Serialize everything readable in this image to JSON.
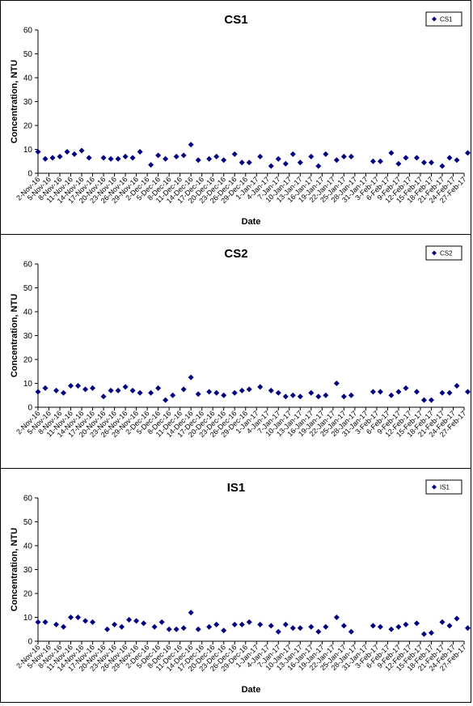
{
  "chart_data": [
    {
      "type": "scatter",
      "title": "CS1",
      "xlabel": "Date",
      "ylabel": "Concentration, NTU",
      "ylim": [
        0,
        60
      ],
      "yticks": [
        0,
        10,
        20,
        30,
        40,
        50,
        60
      ],
      "xlim": [
        "2-Nov-16",
        "27-Feb-17"
      ],
      "xticks": [
        "2-Nov-16",
        "5-Nov-16",
        "8-Nov-16",
        "11-Nov-16",
        "14-Nov-16",
        "17-Nov-16",
        "20-Nov-16",
        "23-Nov-16",
        "26-Nov-16",
        "29-Nov-16",
        "2-Dec-16",
        "5-Dec-16",
        "8-Dec-16",
        "11-Dec-16",
        "14-Dec-16",
        "17-Dec-16",
        "20-Dec-16",
        "23-Dec-16",
        "26-Dec-16",
        "29-Dec-16",
        "1-Jan-17",
        "4-Jan-17",
        "7-Jan-17",
        "10-Jan-17",
        "13-Jan-17",
        "16-Jan-17",
        "19-Jan-17",
        "22-Jan-17",
        "25-Jan-17",
        "28-Jan-17",
        "31-Jan-17",
        "3-Feb-17",
        "6-Feb-17",
        "9-Feb-17",
        "12-Feb-17",
        "15-Feb-17",
        "18-Feb-17",
        "21-Feb-17",
        "24-Feb-17",
        "27-Feb-17"
      ],
      "grid": false,
      "legend": "top-right",
      "series": [
        {
          "name": "CS1",
          "color": "#000080",
          "marker": "diamond",
          "x": [
            "2-Nov-16",
            "4-Nov-16",
            "6-Nov-16",
            "8-Nov-16",
            "10-Nov-16",
            "12-Nov-16",
            "14-Nov-16",
            "16-Nov-16",
            "20-Nov-16",
            "22-Nov-16",
            "24-Nov-16",
            "26-Nov-16",
            "28-Nov-16",
            "30-Nov-16",
            "3-Dec-16",
            "5-Dec-16",
            "7-Dec-16",
            "10-Dec-16",
            "12-Dec-16",
            "14-Dec-16",
            "16-Dec-16",
            "19-Dec-16",
            "21-Dec-16",
            "23-Dec-16",
            "26-Dec-16",
            "28-Dec-16",
            "30-Dec-16",
            "2-Jan-17",
            "5-Jan-17",
            "7-Jan-17",
            "9-Jan-17",
            "11-Jan-17",
            "13-Jan-17",
            "16-Jan-17",
            "18-Jan-17",
            "20-Jan-17",
            "23-Jan-17",
            "25-Jan-17",
            "27-Jan-17",
            "2-Feb-17",
            "4-Feb-17",
            "7-Feb-17",
            "9-Feb-17",
            "11-Feb-17",
            "14-Feb-17",
            "16-Feb-17",
            "18-Feb-17",
            "21-Feb-17",
            "23-Feb-17",
            "25-Feb-17",
            "28-Feb-17"
          ],
          "values": [
            9,
            6,
            6.5,
            7,
            9,
            8,
            9.5,
            6.5,
            6.5,
            6,
            6,
            7,
            6.5,
            9,
            3.5,
            7.5,
            6,
            7,
            7.5,
            12,
            5.5,
            6,
            7,
            5.5,
            8,
            4.5,
            4.5,
            7,
            3,
            6,
            4,
            8,
            4.5,
            7,
            3,
            8,
            5.5,
            7,
            7,
            5,
            5,
            8.5,
            4,
            6.5,
            6.5,
            4.5,
            4.5,
            3,
            6.5,
            5.5,
            8.5
          ]
        }
      ]
    },
    {
      "type": "scatter",
      "title": "CS2",
      "xlabel": "",
      "ylabel": "Concentration, NTU",
      "ylim": [
        0,
        60
      ],
      "yticks": [
        0,
        10,
        20,
        30,
        40,
        50,
        60
      ],
      "xlim": [
        "2-Nov-16",
        "27-Feb-17"
      ],
      "xticks": [
        "2-Nov-16",
        "5-Nov-16",
        "8-Nov-16",
        "11-Nov-16",
        "14-Nov-16",
        "17-Nov-16",
        "20-Nov-16",
        "23-Nov-16",
        "26-Nov-16",
        "29-Nov-16",
        "2-Dec-16",
        "5-Dec-16",
        "8-Dec-16",
        "11-Dec-16",
        "14-Dec-16",
        "17-Dec-16",
        "20-Dec-16",
        "23-Dec-16",
        "26-Dec-16",
        "29-Dec-16",
        "1-Jan-17",
        "4-Jan-17",
        "7-Jan-17",
        "10-Jan-17",
        "13-Jan-17",
        "16-Jan-17",
        "19-Jan-17",
        "22-Jan-17",
        "25-Jan-17",
        "28-Jan-17",
        "31-Jan-17",
        "3-Feb-17",
        "6-Feb-17",
        "9-Feb-17",
        "12-Feb-17",
        "15-Feb-17",
        "18-Feb-17",
        "21-Feb-17",
        "24-Feb-17",
        "27-Feb-17"
      ],
      "grid": false,
      "legend": "top-right",
      "series": [
        {
          "name": "CS2",
          "color": "#000080",
          "marker": "diamond",
          "x": [
            "2-Nov-16",
            "4-Nov-16",
            "7-Nov-16",
            "9-Nov-16",
            "11-Nov-16",
            "13-Nov-16",
            "15-Nov-16",
            "17-Nov-16",
            "20-Nov-16",
            "22-Nov-16",
            "24-Nov-16",
            "26-Nov-16",
            "28-Nov-16",
            "30-Nov-16",
            "3-Dec-16",
            "5-Dec-16",
            "7-Dec-16",
            "9-Dec-16",
            "12-Dec-16",
            "14-Dec-16",
            "16-Dec-16",
            "19-Dec-16",
            "21-Dec-16",
            "23-Dec-16",
            "26-Dec-16",
            "28-Dec-16",
            "30-Dec-16",
            "2-Jan-17",
            "5-Jan-17",
            "7-Jan-17",
            "9-Jan-17",
            "11-Jan-17",
            "13-Jan-17",
            "16-Jan-17",
            "18-Jan-17",
            "20-Jan-17",
            "23-Jan-17",
            "25-Jan-17",
            "27-Jan-17",
            "2-Feb-17",
            "4-Feb-17",
            "7-Feb-17",
            "9-Feb-17",
            "11-Feb-17",
            "14-Feb-17",
            "16-Feb-17",
            "18-Feb-17",
            "21-Feb-17",
            "23-Feb-17",
            "25-Feb-17",
            "28-Feb-17"
          ],
          "values": [
            6.5,
            8,
            7,
            6,
            9,
            9,
            7.5,
            8,
            4.5,
            7,
            7,
            8.5,
            7,
            6,
            6,
            8,
            3,
            5,
            7.5,
            12.5,
            5.5,
            6.5,
            6,
            5,
            6,
            7,
            7.5,
            8.5,
            7,
            6,
            4.5,
            5,
            4.5,
            6,
            4.5,
            5,
            10,
            4.5,
            5,
            6.5,
            6.5,
            5,
            6.5,
            8,
            6.5,
            3,
            3,
            6,
            6,
            9,
            6.5
          ]
        }
      ]
    },
    {
      "type": "scatter",
      "title": "IS1",
      "xlabel": "Date",
      "ylabel": "Concentration, NTU",
      "ylim": [
        0,
        60
      ],
      "yticks": [
        0,
        10,
        20,
        30,
        40,
        50,
        60
      ],
      "xlim": [
        "2-Nov-16",
        "27-Feb-17"
      ],
      "xticks": [
        "2-Nov-16",
        "5-Nov-16",
        "8-Nov-16",
        "11-Nov-16",
        "14-Nov-16",
        "17-Nov-16",
        "20-Nov-16",
        "23-Nov-16",
        "26-Nov-16",
        "29-Nov-16",
        "2-Dec-16",
        "5-Dec-16",
        "8-Dec-16",
        "11-Dec-16",
        "14-Dec-16",
        "17-Dec-16",
        "20-Dec-16",
        "23-Dec-16",
        "26-Dec-16",
        "29-Dec-16",
        "1-Jan-17",
        "4-Jan-17",
        "7-Jan-17",
        "10-Jan-17",
        "13-Jan-17",
        "16-Jan-17",
        "19-Jan-17",
        "22-Jan-17",
        "25-Jan-17",
        "28-Jan-17",
        "31-Jan-17",
        "3-Feb-17",
        "6-Feb-17",
        "9-Feb-17",
        "12-Feb-17",
        "15-Feb-17",
        "18-Feb-17",
        "21-Feb-17",
        "24-Feb-17",
        "27-Feb-17"
      ],
      "grid": false,
      "legend": "top-right",
      "series": [
        {
          "name": "IS1",
          "color": "#000080",
          "marker": "diamond",
          "x": [
            "2-Nov-16",
            "4-Nov-16",
            "7-Nov-16",
            "9-Nov-16",
            "11-Nov-16",
            "13-Nov-16",
            "15-Nov-16",
            "17-Nov-16",
            "21-Nov-16",
            "23-Nov-16",
            "25-Nov-16",
            "27-Nov-16",
            "29-Nov-16",
            "1-Dec-16",
            "4-Dec-16",
            "6-Dec-16",
            "8-Dec-16",
            "10-Dec-16",
            "12-Dec-16",
            "14-Dec-16",
            "16-Dec-16",
            "19-Dec-16",
            "21-Dec-16",
            "23-Dec-16",
            "26-Dec-16",
            "28-Dec-16",
            "30-Dec-16",
            "2-Jan-17",
            "5-Jan-17",
            "7-Jan-17",
            "9-Jan-17",
            "11-Jan-17",
            "13-Jan-17",
            "16-Jan-17",
            "18-Jan-17",
            "20-Jan-17",
            "23-Jan-17",
            "25-Jan-17",
            "27-Jan-17",
            "2-Feb-17",
            "4-Feb-17",
            "7-Feb-17",
            "9-Feb-17",
            "11-Feb-17",
            "14-Feb-17",
            "16-Feb-17",
            "18-Feb-17",
            "21-Feb-17",
            "23-Feb-17",
            "25-Feb-17",
            "28-Feb-17"
          ],
          "values": [
            8,
            8,
            7,
            6,
            10,
            10,
            8.5,
            8,
            5,
            7,
            6,
            9,
            8.5,
            7.5,
            6,
            8,
            5,
            5,
            5.5,
            12,
            5,
            6,
            7,
            4.5,
            7,
            7,
            8,
            7,
            6.5,
            4,
            7,
            5.5,
            5.5,
            6,
            4,
            6,
            10,
            6.5,
            4,
            6.5,
            6,
            5,
            6,
            7,
            7.5,
            3,
            3.5,
            8,
            6.5,
            9.5,
            5.5
          ]
        }
      ]
    }
  ]
}
